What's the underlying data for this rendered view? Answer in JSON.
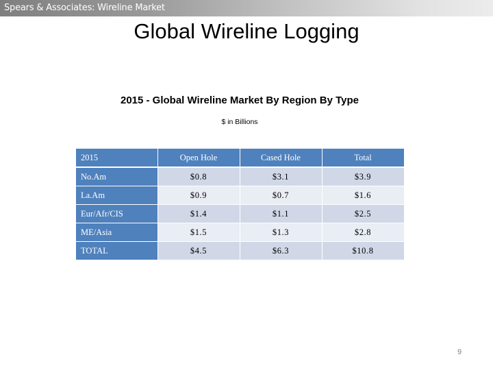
{
  "header": {
    "text": "Spears & Associates:  Wireline Market"
  },
  "page_title": "Global Wireline Logging",
  "table": {
    "title": "2015 - Global Wireline Market By Region By Type",
    "subtitle": "$ in Billions",
    "columns": [
      "2015",
      "Open Hole",
      "Cased Hole",
      "Total"
    ],
    "rows": [
      {
        "label": "No.Am",
        "values": [
          "$0.8",
          "$3.1",
          "$3.9"
        ]
      },
      {
        "label": "La.Am",
        "values": [
          "$0.9",
          "$0.7",
          "$1.6"
        ]
      },
      {
        "label": "Eur/Afr/CIS",
        "values": [
          "$1.4",
          "$1.1",
          "$2.5"
        ]
      },
      {
        "label": "ME/Asia",
        "values": [
          "$1.5",
          "$1.3",
          "$2.8"
        ]
      },
      {
        "label": "TOTAL",
        "values": [
          "$4.5",
          "$6.3",
          "$10.8"
        ]
      }
    ]
  },
  "page_number": "9",
  "colors": {
    "header_accent": "#4f81bd",
    "band_dark": "#d0d8e8",
    "band_light": "#e9edf4"
  }
}
